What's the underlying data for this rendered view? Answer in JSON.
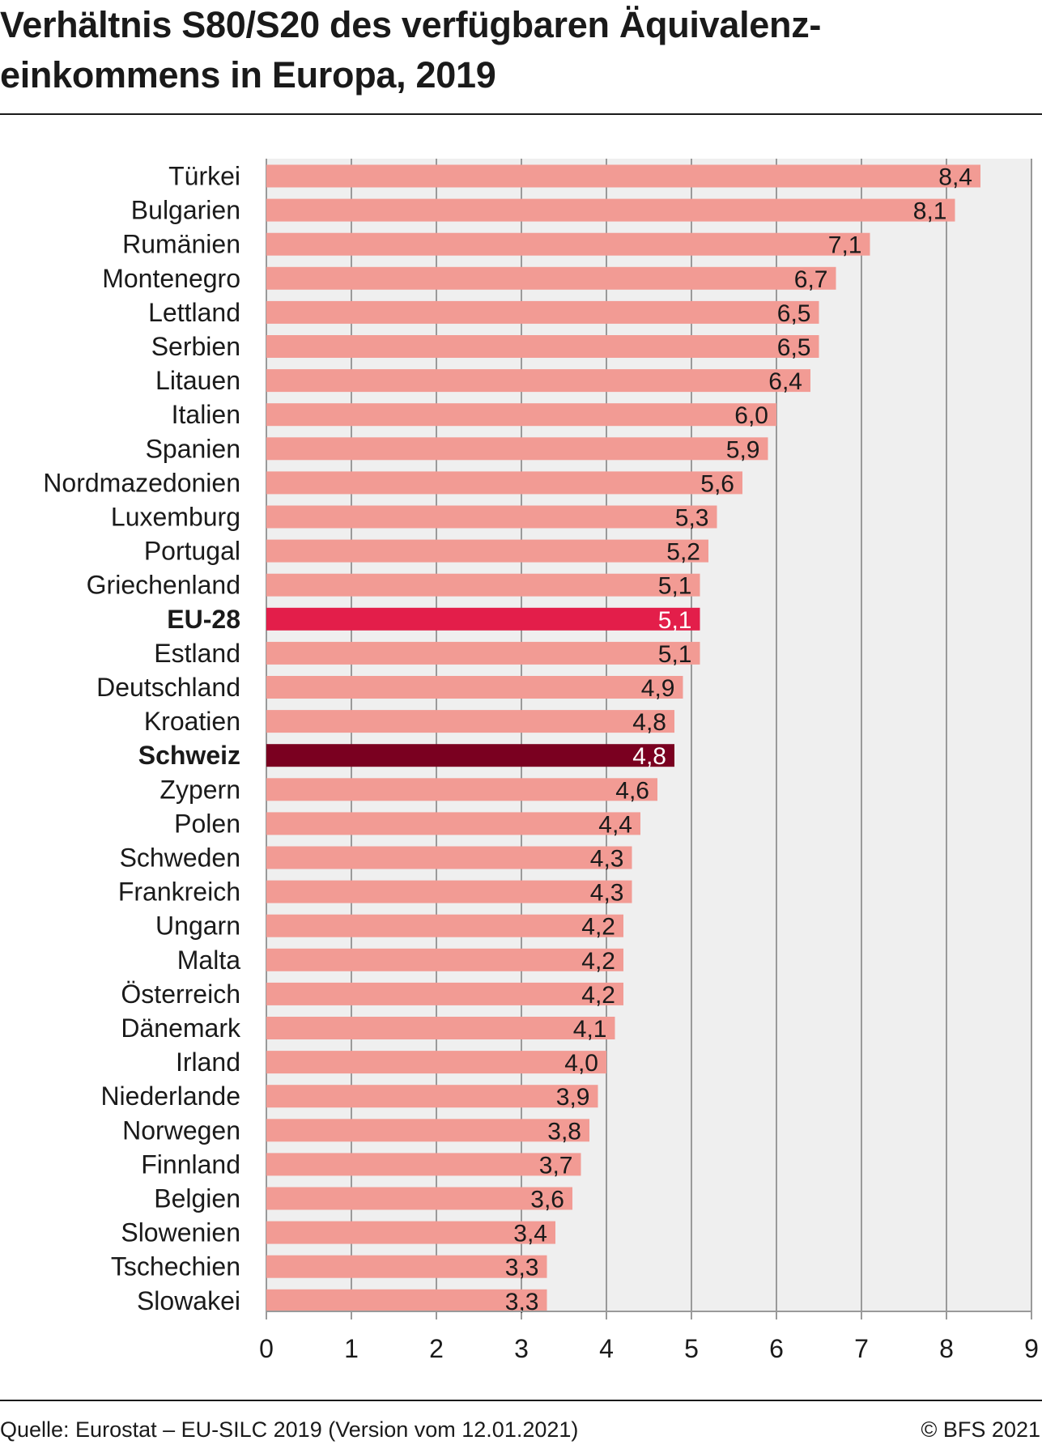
{
  "title": {
    "line1": "Verhältnis S80/S20 des verfügbaren Äquivalenz-",
    "line2": "einkommens in Europa, 2019"
  },
  "footer": {
    "source": "Quelle: Eurostat – EU-SILC 2019 (Version vom 12.01.2021)",
    "copyright": "© BFS 2021"
  },
  "colors": {
    "bar_default": "#f29b94",
    "bar_eu": "#e31e4a",
    "bar_switzerland": "#7a0020",
    "plot_background": "#efefef",
    "gridline": "#9a9a9a"
  },
  "chart_data": {
    "type": "bar",
    "orientation": "horizontal",
    "title": "Verhältnis S80/S20 des verfügbaren Äquivalenzeinkommens in Europa, 2019",
    "xlabel": "",
    "ylabel": "",
    "xlim": [
      0,
      9
    ],
    "xticks": [
      "0",
      "1",
      "2",
      "3",
      "4",
      "5",
      "6",
      "7",
      "8",
      "9"
    ],
    "grid": true,
    "categories": [
      "Türkei",
      "Bulgarien",
      "Rumänien",
      "Montenegro",
      "Lettland",
      "Serbien",
      "Litauen",
      "Italien",
      "Spanien",
      "Nordmazedonien",
      "Luxemburg",
      "Portugal",
      "Griechenland",
      "EU-28",
      "Estland",
      "Deutschland",
      "Kroatien",
      "Schweiz",
      "Zypern",
      "Polen",
      "Schweden",
      "Frankreich",
      "Ungarn",
      "Malta",
      "Österreich",
      "Dänemark",
      "Irland",
      "Niederlande",
      "Norwegen",
      "Finnland",
      "Belgien",
      "Slowenien",
      "Tschechien",
      "Slowakei"
    ],
    "values": [
      8.4,
      8.1,
      7.1,
      6.7,
      6.5,
      6.5,
      6.4,
      6.0,
      5.9,
      5.6,
      5.3,
      5.2,
      5.1,
      5.1,
      5.1,
      4.9,
      4.8,
      4.8,
      4.6,
      4.4,
      4.3,
      4.3,
      4.2,
      4.2,
      4.2,
      4.1,
      4.0,
      3.9,
      3.8,
      3.7,
      3.6,
      3.4,
      3.3,
      3.3
    ],
    "value_labels": [
      "8,4",
      "8,1",
      "7,1",
      "6,7",
      "6,5",
      "6,5",
      "6,4",
      "6,0",
      "5,9",
      "5,6",
      "5,3",
      "5,2",
      "5,1",
      "5,1",
      "5,1",
      "4,9",
      "4,8",
      "4,8",
      "4,6",
      "4,4",
      "4,3",
      "4,3",
      "4,2",
      "4,2",
      "4,2",
      "4,1",
      "4,0",
      "3,9",
      "3,8",
      "3,7",
      "3,6",
      "3,4",
      "3,3",
      "3,3"
    ],
    "highlighted": {
      "EU-28": "bar_eu",
      "Schweiz": "bar_switzerland"
    }
  }
}
